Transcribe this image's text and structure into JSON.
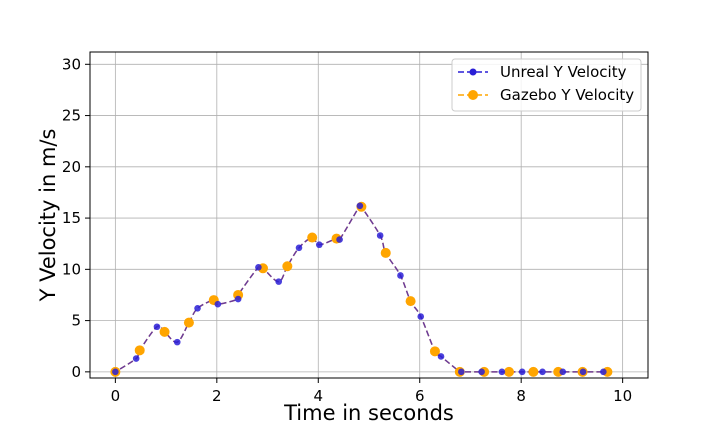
{
  "chart_data": {
    "type": "line",
    "title": "",
    "xlabel": "Time in seconds",
    "ylabel": "Y Velocity in m/s",
    "xlim": [
      -0.5,
      10.5
    ],
    "ylim": [
      -0.6,
      31.2
    ],
    "xticks": [
      0,
      2,
      4,
      6,
      8,
      10
    ],
    "yticks": [
      0,
      5,
      10,
      15,
      20,
      25,
      30
    ],
    "grid": true,
    "legend_position": "top-right",
    "series": [
      {
        "name": "Unreal Y Velocity",
        "color": "#2a1fd6",
        "line_style": "dashed",
        "marker": "circle",
        "marker_size": "small",
        "x": [
          0,
          0.41,
          0.82,
          1.22,
          1.62,
          2.02,
          2.42,
          2.82,
          3.22,
          3.62,
          4.02,
          4.42,
          4.82,
          5.22,
          5.62,
          6.02,
          6.42,
          6.82,
          7.22,
          7.62,
          8.02,
          8.42,
          8.82,
          9.22,
          9.62
        ],
        "values": [
          0,
          1.3,
          4.4,
          2.9,
          6.2,
          6.6,
          7.1,
          10.2,
          8.8,
          12.1,
          12.4,
          12.9,
          16.2,
          13.3,
          9.4,
          5.4,
          1.5,
          0,
          0,
          0,
          0,
          0,
          0,
          0,
          0
        ]
      },
      {
        "name": "Gazebo Y Velocity",
        "color": "#ffa500",
        "line_style": "dashed",
        "marker": "circle",
        "marker_size": "large",
        "x": [
          0,
          0.48,
          0.97,
          1.45,
          1.94,
          2.42,
          2.91,
          3.39,
          3.88,
          4.36,
          4.85,
          5.33,
          5.82,
          6.3,
          6.79,
          7.27,
          7.76,
          8.24,
          8.73,
          9.21,
          9.7
        ],
        "values": [
          0,
          2.1,
          3.9,
          4.8,
          7.0,
          7.5,
          10.1,
          10.3,
          13.1,
          13.0,
          16.1,
          11.6,
          6.9,
          2.0,
          0,
          0,
          0,
          0,
          0,
          0,
          0
        ]
      }
    ],
    "curve_color": "#6a3a9a"
  }
}
